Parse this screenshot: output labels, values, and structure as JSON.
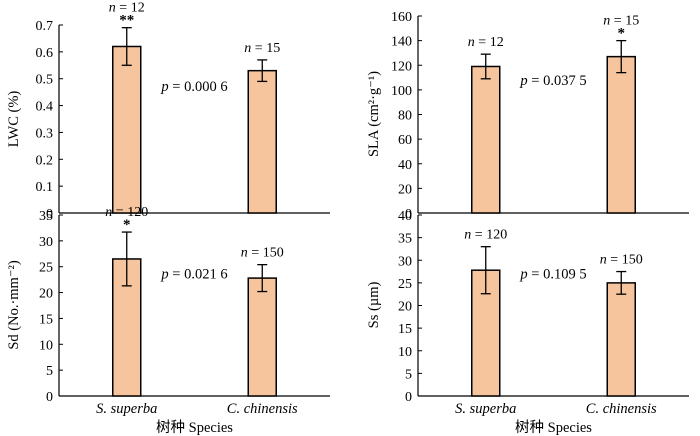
{
  "colors": {
    "bar_fill": "#f6c59d",
    "bar_stroke": "#000000",
    "axis": "#000000"
  },
  "chart_data": [
    {
      "type": "bar",
      "categories": [
        "S. superba",
        "C. chinensis"
      ],
      "values": [
        0.62,
        0.53
      ],
      "errors": [
        0.07,
        0.04
      ],
      "sample_labels": [
        "n = 12",
        "n = 15"
      ],
      "significance": [
        "**",
        ""
      ],
      "p_text": "p = 0.000 6",
      "ylabel": "LWC (%)",
      "ylim": [
        0,
        0.7
      ],
      "yticks": [
        "0",
        "0.1",
        "0.2",
        "0.3",
        "0.4",
        "0.5",
        "0.6",
        "0.7"
      ],
      "show_xtick_labels": false,
      "xlabel": ""
    },
    {
      "type": "bar",
      "categories": [
        "S. superba",
        "C. chinensis"
      ],
      "values": [
        119,
        127
      ],
      "errors": [
        10,
        13
      ],
      "sample_labels": [
        "n = 12",
        "n = 15"
      ],
      "significance": [
        "",
        "*"
      ],
      "p_text": "p = 0.037 5",
      "ylabel": "SLA (cm²·g⁻¹)",
      "ylim": [
        0,
        160
      ],
      "yticks": [
        "0",
        "20",
        "40",
        "60",
        "80",
        "100",
        "120",
        "140",
        "160"
      ],
      "show_xtick_labels": false,
      "xlabel": ""
    },
    {
      "type": "bar",
      "categories": [
        "S. superba",
        "C. chinensis"
      ],
      "values": [
        26.5,
        22.8
      ],
      "errors": [
        5.2,
        2.6
      ],
      "sample_labels": [
        "n = 120",
        "n = 150"
      ],
      "significance": [
        "*",
        ""
      ],
      "p_text": "p = 0.021 6",
      "ylabel": "Sd (No.·mm⁻²)",
      "ylim": [
        0,
        35
      ],
      "yticks": [
        "0",
        "5",
        "10",
        "15",
        "20",
        "25",
        "30",
        "35"
      ],
      "show_xtick_labels": true,
      "xlabel": "树种 Species"
    },
    {
      "type": "bar",
      "categories": [
        "S. superba",
        "C. chinensis"
      ],
      "values": [
        27.8,
        25.0
      ],
      "errors": [
        5.2,
        2.5
      ],
      "sample_labels": [
        "n = 120",
        "n = 150"
      ],
      "significance": [
        "",
        ""
      ],
      "p_text": "p = 0.109 5",
      "ylabel": "Ss (µm)",
      "ylim": [
        0,
        40
      ],
      "yticks": [
        "0",
        "5",
        "10",
        "15",
        "20",
        "25",
        "30",
        "35",
        "40"
      ],
      "show_xtick_labels": true,
      "xlabel": "树种 Species"
    }
  ]
}
